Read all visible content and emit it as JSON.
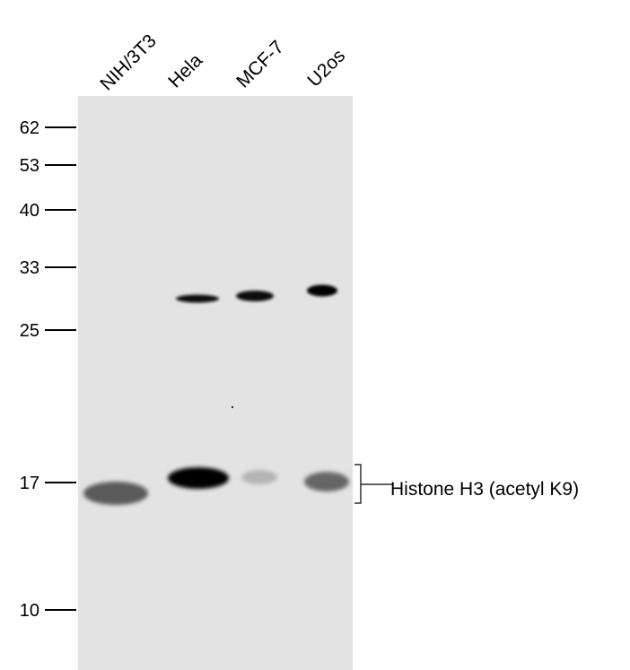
{
  "lanes": [
    "NIH/3T3",
    "Hela",
    "MCF-7",
    "U2os"
  ],
  "markers": [
    "62",
    "53",
    "40",
    "33",
    "25",
    "17",
    "10"
  ],
  "band_label": "Histone H3 (acetyl K9)",
  "colors": {
    "membrane": "#e3e3e3",
    "band": "#000000"
  }
}
